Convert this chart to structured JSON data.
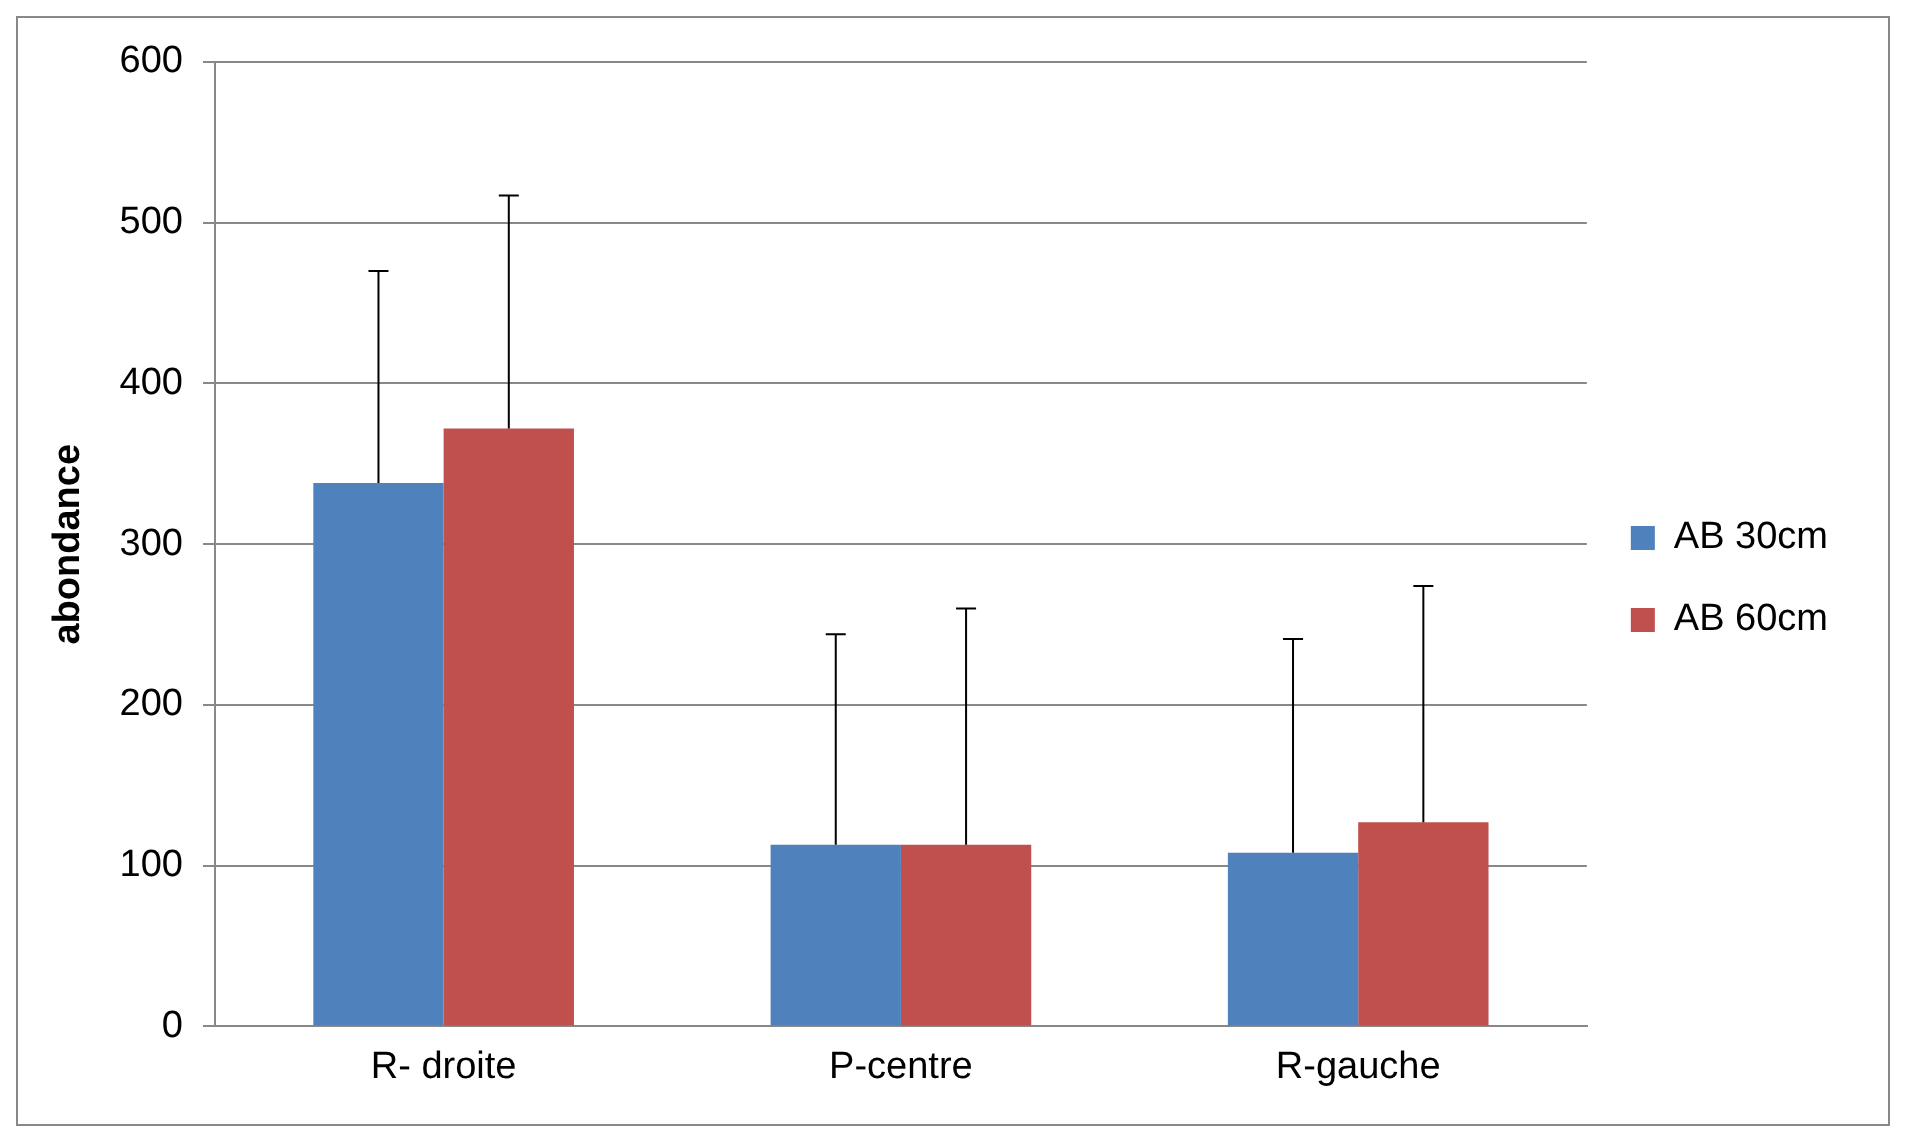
{
  "chart_data": {
    "type": "bar",
    "ylabel": "abondance",
    "categories": [
      "R- droite",
      "P-centre",
      "R-gauche"
    ],
    "series": [
      {
        "name": "AB 30cm",
        "color": "#4f81bd",
        "values": [
          338,
          113,
          108
        ],
        "errors": [
          [
            338,
            470
          ],
          [
            113,
            244
          ],
          [
            108,
            241
          ]
        ]
      },
      {
        "name": "AB 60cm",
        "color": "#c0504d",
        "values": [
          372,
          113,
          127
        ],
        "errors": [
          [
            372,
            517
          ],
          [
            113,
            260
          ],
          [
            127,
            274
          ]
        ]
      }
    ],
    "ylim": [
      0,
      600
    ],
    "yticks": [
      0,
      100,
      200,
      300,
      400,
      500,
      600
    ],
    "grid": "y",
    "legend": "right"
  }
}
